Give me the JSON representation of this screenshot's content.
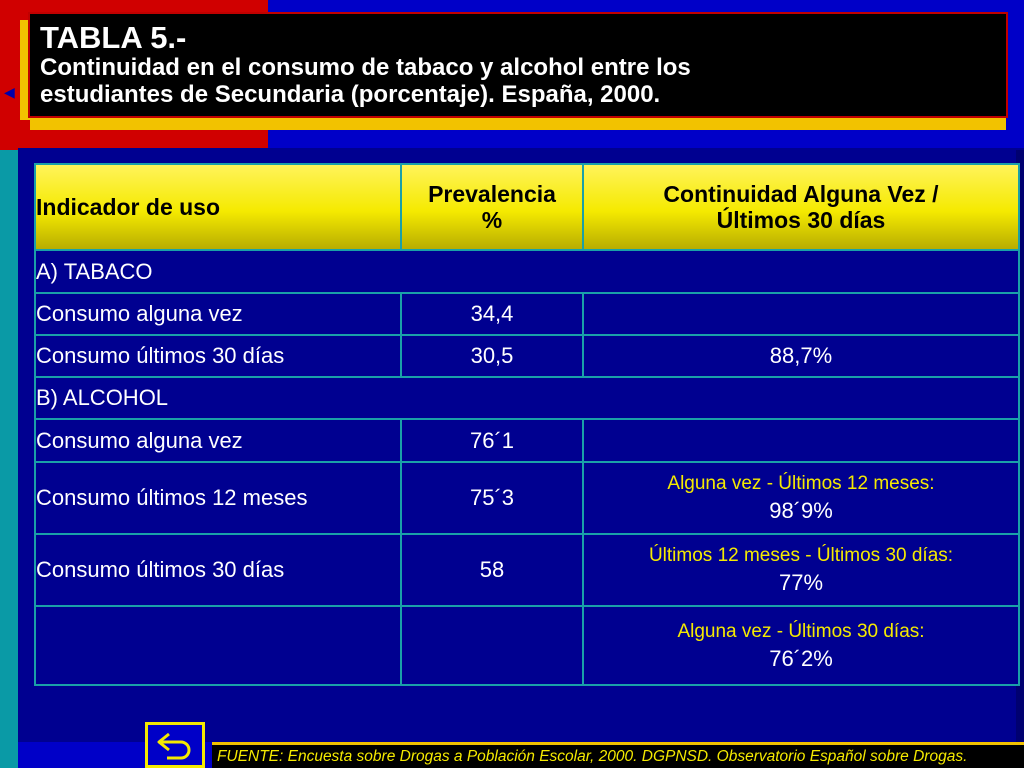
{
  "title": {
    "main": "TABLA 5.-",
    "subtitle": "Continuidad en el consumo de tabaco y alcohol entre los\nestudiantes de Secundaria (porcentaje). España, 2000."
  },
  "table": {
    "headers": {
      "indicator": "Indicador de uso",
      "prevalence": "Prevalencia\n%",
      "continuity": "Continuidad Alguna Vez /\nÚltimos 30 días"
    },
    "tabaco": {
      "section_label": "A) TABACO",
      "rows": [
        {
          "label": "Consumo alguna vez",
          "prevalence": "34,4",
          "continuity": ""
        },
        {
          "label": "Consumo últimos  30 días",
          "prevalence": "30,5",
          "continuity": "88,7%"
        }
      ]
    },
    "alcohol": {
      "section_label": "B) ALCOHOL",
      "rows": [
        {
          "label": "Consumo alguna vez",
          "prevalence": "76´1",
          "continuity_label": "",
          "continuity_value": ""
        },
        {
          "label": "Consumo últimos 12 meses",
          "prevalence": "75´3",
          "continuity_label": "Alguna vez - Últimos 12 meses:",
          "continuity_value": "98´9%"
        },
        {
          "label": "Consumo últimos  30 días",
          "prevalence": "58",
          "continuity_label": "Últimos 12 meses - Últimos 30 días:",
          "continuity_value": "77%"
        },
        {
          "label": "",
          "prevalence": "",
          "continuity_label": "Alguna vez - Últimos 30 días:",
          "continuity_value": "76´2%"
        }
      ]
    }
  },
  "footer": {
    "source": "FUENTE: Encuesta sobre Drogas a Población Escolar, 2000. DGPNSD. Observatorio Español sobre Drogas."
  },
  "navigation": {
    "return_icon": "return-arrow-icon",
    "prev_icon": "left-triangle-icon"
  },
  "colors": {
    "background": "#0000c8",
    "panel": "#000090",
    "header_yellow": "#f5ea00",
    "accent_red": "#c00000",
    "title_box": "#000000",
    "table_border": "#1aa0a8"
  }
}
